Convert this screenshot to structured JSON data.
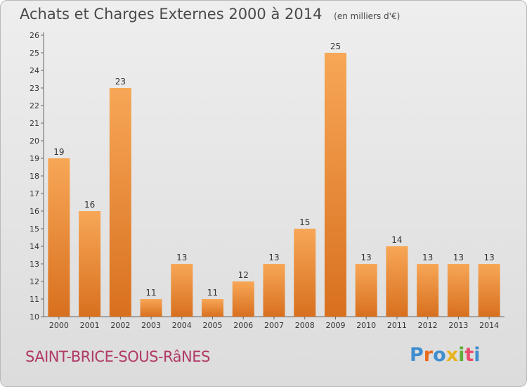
{
  "header": {
    "title": "Achats et Charges Externes 2000 à 2014",
    "unit": "(en milliers d'€)"
  },
  "footer": {
    "town": "SAINT-BRICE-SOUS-RâNES",
    "logo_letters": [
      "P",
      "r",
      "o",
      "x",
      "i",
      "t",
      "i"
    ]
  },
  "colors": {
    "bar_top": "#f7a757",
    "bar_bottom": "#d8701e",
    "axis": "#666666",
    "town": "#b03a67",
    "logo": [
      "#3f8ecf",
      "#e86a1e",
      "#3f8ecf",
      "#e8b31e",
      "#5fae3a",
      "#e84c6a",
      "#3f8ecf"
    ]
  },
  "chart_data": {
    "type": "bar",
    "title": "Achats et Charges Externes 2000 à 2014",
    "categories": [
      "2000",
      "2001",
      "2002",
      "2003",
      "2004",
      "2005",
      "2006",
      "2007",
      "2008",
      "2009",
      "2010",
      "2011",
      "2012",
      "2013",
      "2014"
    ],
    "values": [
      19,
      16,
      23,
      11,
      13,
      11,
      12,
      13,
      15,
      25,
      13,
      14,
      13,
      13,
      13
    ],
    "ylim": [
      10,
      26
    ],
    "ytick_step": 1,
    "grid": false,
    "xlabel": "",
    "ylabel": ""
  }
}
